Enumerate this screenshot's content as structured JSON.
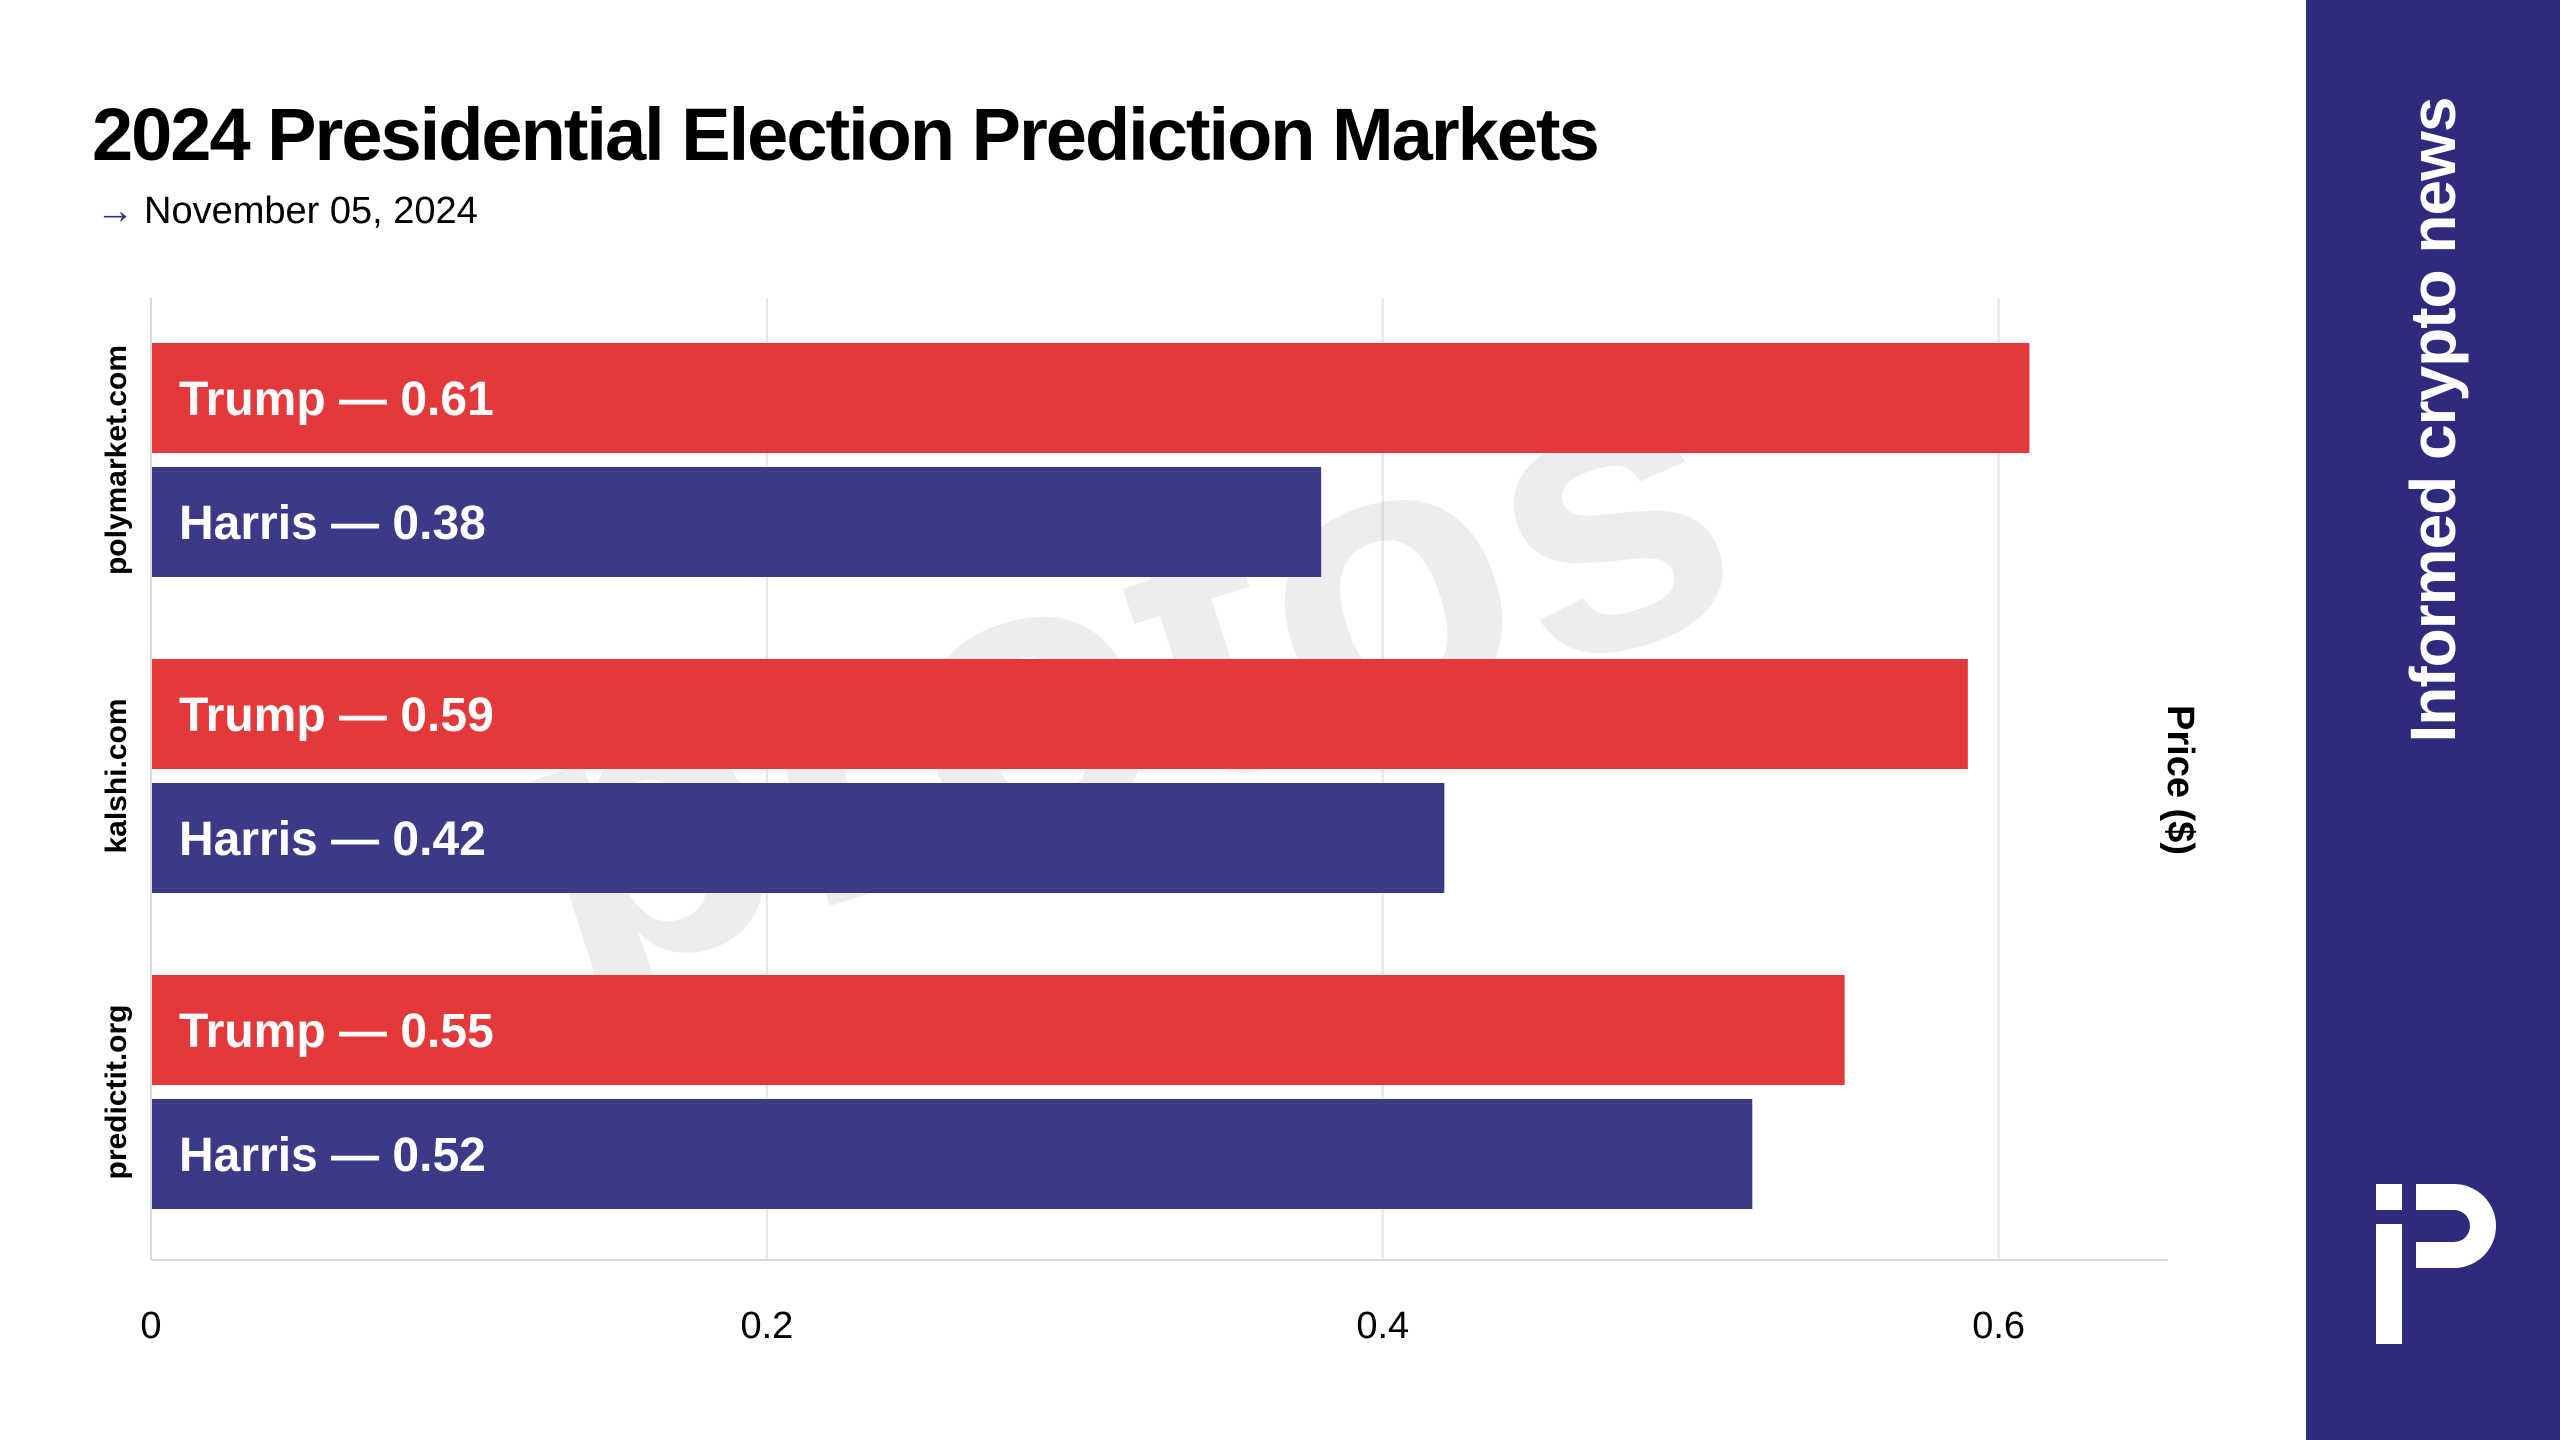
{
  "title": "2024 Presidential Election Prediction Markets",
  "subtitle": "November 05, 2024",
  "sidebar": {
    "tagline": "Informed crypto news"
  },
  "watermark": "protos",
  "colors": {
    "trump": "#e3393b",
    "harris": "#3a3a86",
    "sidebar": "#2e2a7e",
    "grid": "#e6e6e6"
  },
  "chart_data": {
    "type": "bar",
    "orientation": "horizontal",
    "categories": [
      "polymarket.com",
      "kalshi.com",
      "predictit.org"
    ],
    "series": [
      {
        "values": [
          0.61,
          0.59,
          0.55
        ],
        "labels": [
          "Trump — 0.61",
          "Trump — 0.59",
          "Trump — 0.55"
        ]
      },
      {
        "values": [
          0.38,
          0.42,
          0.52
        ],
        "labels": [
          "Harris — 0.38",
          "Harris — 0.42",
          "Harris — 0.52"
        ]
      }
    ],
    "xticks": [
      0,
      0.2,
      0.4,
      0.6
    ],
    "xtick_labels": [
      "0",
      "0.2",
      "0.4",
      "0.6"
    ],
    "xlim": [
      0,
      0.655
    ],
    "ylabel": "Price ($)",
    "grid": true
  }
}
